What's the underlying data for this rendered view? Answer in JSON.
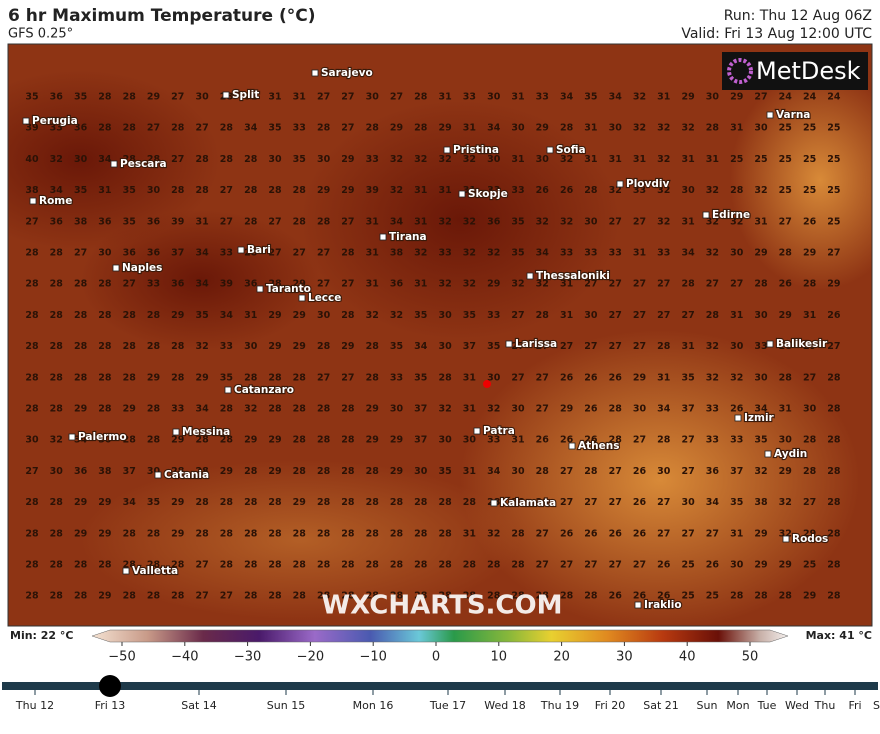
{
  "header": {
    "title": "6 hr Maximum Temperature (°C)",
    "model": "GFS 0.25°",
    "run": "Run: Thu 12 Aug 06Z",
    "valid": "Valid: Fri 13 Aug 12:00 UTC"
  },
  "map": {
    "logo": "MetDesk",
    "watermark": "WXCHARTS.COM",
    "grid": [
      [
        35,
        36,
        35,
        28,
        28,
        29,
        27,
        30,
        28,
        31,
        31,
        31,
        27,
        27,
        30,
        27,
        28,
        31,
        33,
        30,
        31,
        33,
        34,
        35,
        34,
        32,
        31,
        29,
        30,
        29,
        27,
        24,
        24,
        24
      ],
      [
        39,
        33,
        36,
        28,
        28,
        27,
        28,
        27,
        28,
        34,
        35,
        33,
        28,
        27,
        28,
        29,
        28,
        29,
        31,
        34,
        30,
        29,
        28,
        31,
        30,
        32,
        32,
        32,
        28,
        31,
        30,
        25,
        25,
        25
      ],
      [
        40,
        32,
        30,
        34,
        28,
        28,
        27,
        28,
        28,
        28,
        30,
        35,
        30,
        29,
        33,
        32,
        32,
        32,
        32,
        30,
        31,
        30,
        32,
        31,
        31,
        31,
        32,
        31,
        31,
        25,
        25,
        25,
        25,
        25
      ],
      [
        38,
        34,
        35,
        31,
        35,
        30,
        28,
        28,
        27,
        28,
        28,
        28,
        29,
        29,
        39,
        32,
        31,
        31,
        31,
        33,
        33,
        26,
        26,
        28,
        32,
        33,
        32,
        30,
        32,
        28,
        32,
        25,
        25,
        25
      ],
      [
        27,
        36,
        38,
        36,
        35,
        36,
        39,
        31,
        27,
        28,
        27,
        28,
        28,
        27,
        31,
        34,
        31,
        32,
        32,
        36,
        35,
        32,
        32,
        30,
        27,
        27,
        32,
        31,
        32,
        32,
        31,
        27,
        26,
        25
      ],
      [
        28,
        28,
        27,
        30,
        36,
        36,
        37,
        34,
        33,
        28,
        27,
        27,
        27,
        28,
        31,
        38,
        32,
        33,
        32,
        32,
        35,
        34,
        33,
        33,
        33,
        31,
        33,
        34,
        32,
        30,
        29,
        28,
        29,
        27
      ],
      [
        28,
        28,
        28,
        28,
        27,
        33,
        36,
        34,
        39,
        36,
        28,
        29,
        27,
        27,
        31,
        36,
        31,
        32,
        32,
        29,
        32,
        32,
        31,
        27,
        27,
        27,
        27,
        28,
        27,
        27,
        28,
        26,
        28,
        29
      ],
      [
        28,
        28,
        28,
        28,
        28,
        28,
        29,
        35,
        34,
        31,
        29,
        29,
        30,
        28,
        32,
        32,
        35,
        30,
        35,
        33,
        27,
        28,
        31,
        30,
        27,
        27,
        27,
        27,
        28,
        31,
        30,
        29,
        31,
        26
      ],
      [
        28,
        28,
        28,
        28,
        28,
        28,
        28,
        32,
        33,
        30,
        29,
        29,
        28,
        29,
        28,
        35,
        34,
        30,
        37,
        35,
        27,
        27,
        27,
        27,
        27,
        27,
        28,
        31,
        32,
        30,
        33,
        28,
        29,
        27
      ],
      [
        28,
        28,
        28,
        28,
        28,
        29,
        28,
        29,
        35,
        28,
        28,
        28,
        27,
        27,
        28,
        33,
        35,
        28,
        31,
        30,
        27,
        27,
        26,
        26,
        26,
        29,
        31,
        35,
        32,
        32,
        30,
        28,
        27,
        28
      ],
      [
        28,
        28,
        29,
        28,
        29,
        28,
        33,
        34,
        28,
        32,
        28,
        28,
        28,
        28,
        29,
        30,
        37,
        32,
        31,
        32,
        30,
        27,
        29,
        26,
        28,
        30,
        34,
        37,
        33,
        26,
        34,
        31,
        30,
        28
      ],
      [
        30,
        32,
        34,
        30,
        28,
        28,
        29,
        28,
        28,
        29,
        29,
        28,
        28,
        28,
        29,
        29,
        37,
        30,
        30,
        33,
        31,
        26,
        26,
        26,
        28,
        27,
        28,
        27,
        33,
        33,
        35,
        30,
        28,
        28
      ],
      [
        27,
        30,
        36,
        38,
        37,
        30,
        28,
        28,
        29,
        28,
        29,
        28,
        28,
        28,
        28,
        29,
        30,
        35,
        31,
        34,
        30,
        28,
        27,
        28,
        27,
        26,
        30,
        27,
        36,
        37,
        32,
        29,
        28,
        28
      ],
      [
        28,
        28,
        29,
        29,
        34,
        35,
        29,
        28,
        28,
        28,
        28,
        29,
        28,
        28,
        28,
        28,
        28,
        28,
        28,
        28,
        28,
        28,
        27,
        27,
        27,
        26,
        27,
        30,
        34,
        35,
        38,
        32,
        27,
        28
      ],
      [
        28,
        28,
        29,
        29,
        28,
        28,
        29,
        28,
        28,
        28,
        28,
        28,
        28,
        28,
        28,
        28,
        28,
        28,
        31,
        32,
        28,
        27,
        26,
        26,
        26,
        26,
        27,
        27,
        27,
        31,
        29,
        32,
        29,
        28
      ],
      [
        28,
        28,
        28,
        28,
        28,
        28,
        28,
        27,
        28,
        28,
        28,
        28,
        28,
        28,
        28,
        28,
        28,
        28,
        28,
        28,
        28,
        27,
        27,
        27,
        27,
        27,
        26,
        25,
        26,
        30,
        29,
        29,
        25,
        28
      ],
      [
        28,
        28,
        28,
        29,
        28,
        28,
        28,
        27,
        27,
        28,
        28,
        28,
        28,
        28,
        28,
        28,
        28,
        28,
        28,
        28,
        28,
        28,
        28,
        28,
        26,
        26,
        26,
        25,
        25,
        28,
        28,
        28,
        29,
        28
      ]
    ],
    "cities": [
      "Sarajevo",
      "Split",
      "Perugia",
      "Pristina",
      "Sofia",
      "Varna",
      "Pescara",
      "Plovdiv",
      "Rome",
      "Skopje",
      "Edirne",
      "Tirana",
      "Bari",
      "Naples",
      "Thessaloniki",
      "Taranto",
      "Lecce",
      "Balikesir",
      "Larissa",
      "Catanzaro",
      "Izmir",
      "Patra",
      "Palermo",
      "Messina",
      "Athens",
      "Aydin",
      "Catania",
      "Kalamata",
      "Rodos",
      "Valletta",
      "Iraklio"
    ]
  },
  "legend": {
    "min": "Min: 22 °C",
    "max": "Max: 41 °C",
    "ticks": [
      {
        "value": -50,
        "label": "−50"
      },
      {
        "value": -40,
        "label": "−40"
      },
      {
        "value": -30,
        "label": "−30"
      },
      {
        "value": -20,
        "label": "−20"
      },
      {
        "value": -10,
        "label": "−10"
      },
      0,
      10,
      20,
      30,
      40,
      50
    ]
  },
  "timeline": {
    "days": [
      "Thu 12",
      "Fri 13",
      "Sat 14",
      "Sun 15",
      "Mon 16",
      "Tue 17",
      "Wed 18",
      "Thu 19",
      "Fri 20",
      "Sat 21",
      "Sun",
      "Mon",
      "Tue",
      "Wed",
      "Thu",
      "Fri",
      "Sat"
    ],
    "selected": 1
  }
}
